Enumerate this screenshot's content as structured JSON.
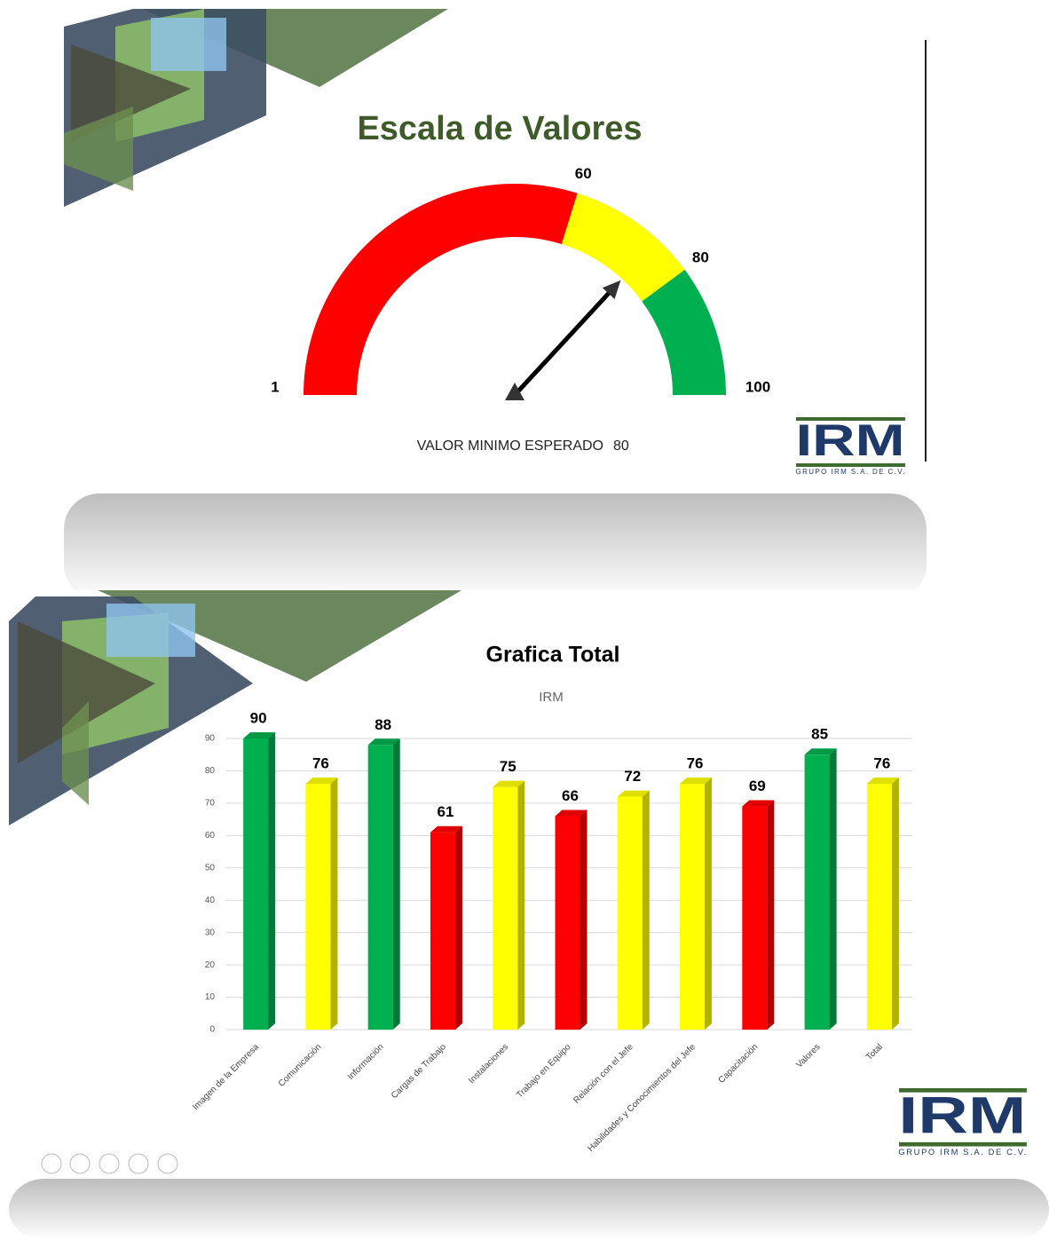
{
  "chart_data": [
    {
      "type": "gauge",
      "title": "Escala de Valores",
      "ticks": [
        1,
        60,
        80,
        100
      ],
      "band_colors": [
        "#ff0000",
        "#ffff00",
        "#00b050"
      ],
      "needle_value": 74,
      "annotation": "VALOR MINIMO ESPERADO",
      "annotation_value": 80
    },
    {
      "type": "bar",
      "title": "Grafica  Total",
      "subtitle": "IRM",
      "categories": [
        "Imagen de la Empresa",
        "Comunicación",
        "Información",
        "Cargas de Trabajo",
        "Instalaciones",
        "Trabajo en Equipo",
        "Relación con el Jefe",
        "Habilidades y Conocimientos del Jefe",
        "Capacitación",
        "Valores",
        "Total"
      ],
      "values": [
        90,
        76,
        88,
        61,
        75,
        66,
        72,
        76,
        69,
        85,
        76
      ],
      "colors": [
        "#00b050",
        "#ffff00",
        "#00b050",
        "#ff0000",
        "#ffff00",
        "#ff0000",
        "#ffff00",
        "#ffff00",
        "#ff0000",
        "#00b050",
        "#ffff00"
      ],
      "ylim": [
        0,
        90
      ],
      "yticks": [
        0,
        10,
        20,
        30,
        40,
        50,
        60,
        70,
        80,
        90
      ],
      "grid": true
    }
  ],
  "logo": {
    "name": "IRM",
    "subtitle": "GRUPO IRM S.A. DE C.V."
  }
}
